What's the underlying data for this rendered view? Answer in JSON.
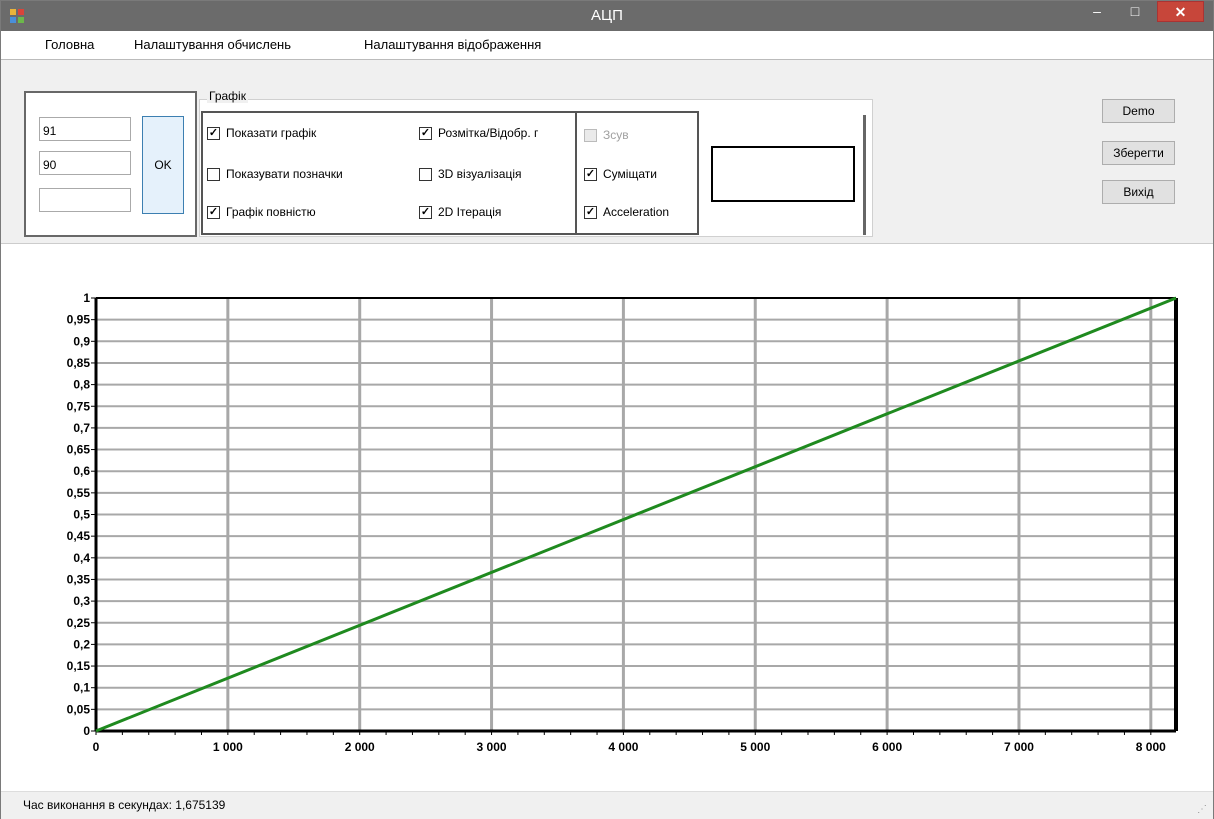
{
  "window": {
    "title": "АЦП"
  },
  "menu": [
    "Головна",
    "Налаштування обчислень",
    "Налаштування відображення"
  ],
  "inputs": {
    "field1": "91",
    "field2": "90",
    "field3": ""
  },
  "ok_label": "OK",
  "group": {
    "legend": "Графік",
    "checkboxes": [
      {
        "label": "Показати графік",
        "checked": true
      },
      {
        "label": "Показувати позначки",
        "checked": false
      },
      {
        "label": "Графік повністю",
        "checked": true
      },
      {
        "label": "Розмітка/Відобр. г",
        "checked": true
      },
      {
        "label": "3D візуалізація",
        "checked": false
      },
      {
        "label": "2D Ітерація",
        "checked": true
      },
      {
        "label": "Зсув",
        "checked": false,
        "disabled": true
      },
      {
        "label": "Суміщати",
        "checked": true
      },
      {
        "label": "Acceleration",
        "checked": true
      }
    ]
  },
  "buttons": {
    "demo": "Demo",
    "save": "Зберегти",
    "exit": "Вихід"
  },
  "status": "Час виконання в секундах: 1,675139",
  "chart_data": {
    "type": "line",
    "x_ticks": [
      "0",
      "1 000",
      "2 000",
      "3 000",
      "4 000",
      "5 000",
      "6 000",
      "7 000",
      "8 000"
    ],
    "y_ticks": [
      "0",
      "0,05",
      "0,1",
      "0,15",
      "0,2",
      "0,25",
      "0,3",
      "0,35",
      "0,4",
      "0,45",
      "0,5",
      "0,55",
      "0,6",
      "0,65",
      "0,7",
      "0,75",
      "0,8",
      "0,85",
      "0,9",
      "0,95",
      "1"
    ],
    "xlim": [
      0,
      8191
    ],
    "ylim": [
      0,
      1
    ],
    "series": [
      {
        "x": [
          0,
          8191
        ],
        "values": [
          0,
          1
        ],
        "color": "#1f8a1f"
      }
    ],
    "grid": true
  }
}
